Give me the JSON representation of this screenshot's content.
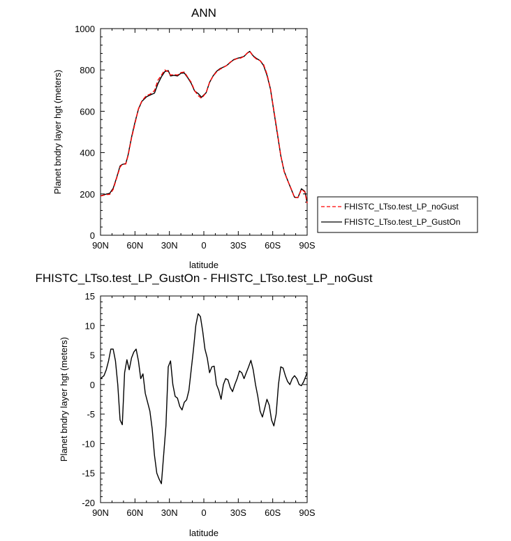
{
  "chart_data": [
    {
      "type": "line",
      "title": "ANN",
      "xlabel": "latitude",
      "ylabel": "Planet bndry layer hgt (meters)",
      "xlim": [
        90,
        -90
      ],
      "ylim": [
        0,
        1000
      ],
      "x_ticks": [
        90,
        60,
        30,
        0,
        -30,
        -60,
        -90
      ],
      "x_tick_labels": [
        "90N",
        "60N",
        "30N",
        "0",
        "30S",
        "60S",
        "90S"
      ],
      "y_ticks": [
        0,
        200,
        400,
        600,
        800,
        1000
      ],
      "y_tick_labels": [
        "0",
        "200",
        "400",
        "600",
        "800",
        "1000"
      ],
      "legend": "outside-right",
      "series": [
        {
          "name": "FHISTC_LTso.test_LP_noGust",
          "color": "#ff0000",
          "dash": "dashed",
          "x": [
            90,
            85,
            82,
            79,
            76,
            73,
            71,
            68,
            66,
            63,
            60,
            57,
            54,
            50,
            47,
            43,
            40,
            37,
            34,
            31,
            29,
            26,
            23,
            20,
            17,
            14,
            11,
            8,
            5,
            2,
            -2,
            -5,
            -8,
            -11,
            -14,
            -17,
            -20,
            -23,
            -26,
            -29,
            -32,
            -35,
            -38,
            -40,
            -43,
            -46,
            -49,
            -52,
            -55,
            -58,
            -61,
            -64,
            -67,
            -70,
            -73,
            -76,
            -79,
            -82,
            -85,
            -88,
            -90
          ],
          "values": [
            190,
            197,
            198,
            222,
            275,
            330,
            343,
            345,
            385,
            470,
            540,
            612,
            650,
            676,
            682,
            700,
            750,
            775,
            800,
            792,
            775,
            778,
            775,
            787,
            790,
            765,
            740,
            700,
            676,
            662,
            690,
            740,
            770,
            790,
            803,
            812,
            822,
            838,
            848,
            855,
            857,
            866,
            883,
            890,
            866,
            852,
            845,
            827,
            780,
            710,
            605,
            500,
            385,
            307,
            265,
            226,
            182,
            183,
            221,
            210,
            155
          ]
        },
        {
          "name": "FHISTC_LTso.test_LP_GustOn",
          "color": "#000000",
          "dash": "solid",
          "x": [
            90,
            85,
            82,
            79,
            76,
            73,
            71,
            68,
            66,
            63,
            60,
            57,
            54,
            50,
            47,
            43,
            40,
            37,
            34,
            31,
            29,
            26,
            23,
            20,
            17,
            14,
            11,
            8,
            5,
            2,
            -2,
            -5,
            -8,
            -11,
            -14,
            -17,
            -20,
            -23,
            -26,
            -29,
            -32,
            -35,
            -38,
            -40,
            -43,
            -46,
            -49,
            -52,
            -55,
            -58,
            -61,
            -64,
            -67,
            -70,
            -73,
            -76,
            -79,
            -82,
            -85,
            -88,
            -90
          ],
          "values": [
            191,
            199,
            203,
            227,
            278,
            335,
            343,
            347,
            389,
            474,
            546,
            610,
            648,
            670,
            678,
            688,
            733,
            767,
            792,
            797,
            771,
            774,
            771,
            784,
            785,
            762,
            735,
            698,
            686,
            668,
            690,
            740,
            771,
            793,
            806,
            814,
            822,
            836,
            850,
            856,
            860,
            866,
            882,
            890,
            868,
            855,
            845,
            822,
            775,
            708,
            600,
            494,
            385,
            309,
            266,
            224,
            184,
            182,
            225,
            212,
            157
          ]
        }
      ]
    },
    {
      "type": "line",
      "title": "FHISTC_LTso.test_LP_GustOn - FHISTC_LTso.test_LP_noGust",
      "xlabel": "latitude",
      "ylabel": "Planet bndry layer hgt (meters)",
      "xlim": [
        90,
        -90
      ],
      "ylim": [
        -20,
        15
      ],
      "x_ticks": [
        90,
        60,
        30,
        0,
        -30,
        -60,
        -90
      ],
      "x_tick_labels": [
        "90N",
        "60N",
        "30N",
        "0",
        "30S",
        "60S",
        "90S"
      ],
      "y_ticks": [
        -20,
        -15,
        -10,
        -5,
        0,
        5,
        10,
        15
      ],
      "y_tick_labels": [
        "-20",
        "-15",
        "-10",
        "-5",
        "0",
        "5",
        "10",
        "15"
      ],
      "series": [
        {
          "color": "#000000",
          "dash": "solid",
          "x": [
            90,
            87,
            85,
            83,
            81,
            79,
            77,
            75,
            73,
            71,
            69,
            67,
            65,
            63,
            61,
            59,
            57,
            55,
            53,
            51,
            49,
            47,
            45,
            43,
            41,
            39,
            37,
            35,
            33,
            31,
            29,
            27,
            25,
            23,
            21,
            19,
            17,
            15,
            13,
            11,
            9,
            7,
            5,
            3,
            1,
            -1,
            -3,
            -5,
            -7,
            -9,
            -11,
            -13,
            -15,
            -17,
            -19,
            -21,
            -23,
            -25,
            -27,
            -29,
            -31,
            -33,
            -35,
            -37,
            -39,
            -41,
            -43,
            -45,
            -47,
            -49,
            -51,
            -53,
            -55,
            -57,
            -59,
            -61,
            -63,
            -65,
            -67,
            -69,
            -71,
            -73,
            -75,
            -77,
            -79,
            -81,
            -83,
            -85,
            -87,
            -90
          ],
          "values": [
            1,
            1.5,
            2.5,
            4,
            6,
            6,
            4,
            0,
            -6,
            -6.8,
            2,
            4.2,
            2.5,
            4.5,
            5.5,
            6,
            4,
            1,
            1.8,
            -1.5,
            -3,
            -4.5,
            -7.5,
            -12,
            -15,
            -16,
            -16.8,
            -12,
            -7,
            3,
            4,
            0,
            -2,
            -2.3,
            -3.7,
            -4.3,
            -3,
            -2.6,
            -1,
            2.5,
            6,
            10,
            12,
            11.5,
            9,
            6,
            4.5,
            2,
            3,
            3.1,
            0,
            -1,
            -2.5,
            0,
            1,
            0.8,
            -0.5,
            -1.2,
            0,
            1,
            2.3,
            2,
            1,
            2,
            3,
            4.1,
            2.5,
            0,
            -2,
            -4.5,
            -5.5,
            -4,
            -2.5,
            -3.5,
            -6,
            -7,
            -5,
            0,
            3,
            2.8,
            1.5,
            0.5,
            0,
            1,
            1.5,
            1,
            0,
            -0.2,
            0.5,
            2
          ]
        }
      ]
    }
  ]
}
